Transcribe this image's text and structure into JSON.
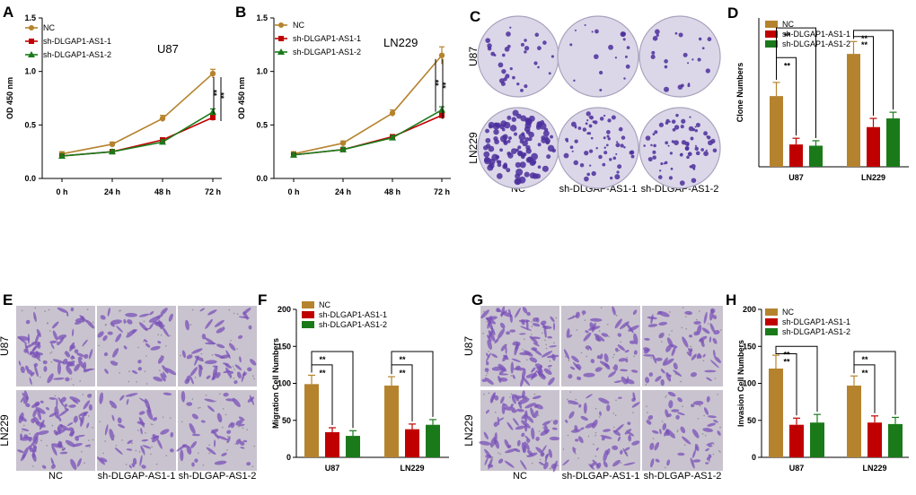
{
  "colors": {
    "NC": "#b5832e",
    "sh1": "#c00000",
    "sh2": "#1a7a1a",
    "plate_bg": "#dcd7e8",
    "colony": "#4b2f9c",
    "well_bg": "#c9c3cf",
    "cell_purple": "#7a52b8"
  },
  "panels": {
    "A": "A",
    "B": "B",
    "C": "C",
    "D": "D",
    "E": "E",
    "F": "F",
    "G": "G",
    "H": "H"
  },
  "images": {
    "C": {
      "rows": [
        "U87",
        "LN229"
      ],
      "cols": [
        "NC",
        "sh-DLGAP-AS1-1",
        "sh-DLGAP-AS1-2"
      ]
    },
    "E": {
      "rows": [
        "U87",
        "LN229"
      ],
      "cols": [
        "NC",
        "sh-DLGAP-AS1-1",
        "sh-DLGAP-AS1-2"
      ]
    },
    "G": {
      "rows": [
        "U87",
        "LN229"
      ],
      "cols": [
        "NC",
        "sh-DLGAP-AS1-1",
        "sh-DLGAP-AS1-2"
      ]
    }
  },
  "chart_data": [
    {
      "id": "A",
      "type": "line",
      "annotation": "U87",
      "ylabel": "OD 450 nm",
      "xlabel": "",
      "categories": [
        "0 h",
        "24 h",
        "48 h",
        "72 h"
      ],
      "ylim": [
        0.0,
        1.5
      ],
      "yticks": [
        "0.0",
        "0.5",
        "1.0",
        "1.5"
      ],
      "legend": "top-left",
      "series": [
        {
          "name": "NC",
          "values": [
            0.23,
            0.32,
            0.56,
            0.98
          ],
          "err": [
            0.02,
            0.02,
            0.03,
            0.04
          ]
        },
        {
          "name": "sh-DLGAP1-AS1-1",
          "values": [
            0.21,
            0.25,
            0.36,
            0.57
          ],
          "err": [
            0.02,
            0.02,
            0.02,
            0.03
          ]
        },
        {
          "name": "sh-DLGAP1-AS1-2",
          "values": [
            0.21,
            0.25,
            0.34,
            0.62
          ],
          "err": [
            0.02,
            0.02,
            0.02,
            0.03
          ]
        }
      ],
      "significance": [
        "**",
        "**"
      ]
    },
    {
      "id": "B",
      "type": "line",
      "annotation": "LN229",
      "ylabel": "OD 450 nm",
      "xlabel": "",
      "categories": [
        "0 h",
        "24 h",
        "48 h",
        "72 h"
      ],
      "ylim": [
        0.0,
        1.5
      ],
      "yticks": [
        "0.0",
        "0.5",
        "1.0",
        "1.5"
      ],
      "legend": "top-left",
      "series": [
        {
          "name": "NC",
          "values": [
            0.23,
            0.33,
            0.61,
            1.15
          ],
          "err": [
            0.02,
            0.02,
            0.03,
            0.08
          ]
        },
        {
          "name": "sh-DLGAP1-AS1-1",
          "values": [
            0.22,
            0.27,
            0.39,
            0.59
          ],
          "err": [
            0.02,
            0.02,
            0.02,
            0.03
          ]
        },
        {
          "name": "sh-DLGAP1-AS1-2",
          "values": [
            0.22,
            0.27,
            0.38,
            0.64
          ],
          "err": [
            0.02,
            0.02,
            0.02,
            0.03
          ]
        }
      ],
      "significance": [
        "**",
        "**"
      ]
    },
    {
      "id": "D",
      "type": "bar",
      "ylabel": "Clone Numbers",
      "xlabel": "",
      "categories": [
        "U87",
        "LN229"
      ],
      "ylim": [
        0,
        120
      ],
      "yticks": [],
      "legend": "top-left",
      "series": [
        {
          "name": "NC",
          "values": [
            57,
            91
          ],
          "err": [
            11,
            10
          ]
        },
        {
          "name": "sh-DLGAP1-AS1-1",
          "values": [
            18,
            32
          ],
          "err": [
            5,
            7
          ]
        },
        {
          "name": "sh-DLGAP1-AS1-2",
          "values": [
            17,
            39
          ],
          "err": [
            4,
            5
          ]
        }
      ],
      "brackets": [
        {
          "group": 0,
          "to": 1,
          "level": 88,
          "label": "**"
        },
        {
          "group": 0,
          "to": 2,
          "level": 112,
          "label": "**"
        },
        {
          "group": 1,
          "to": 1,
          "level": 105,
          "label": "**"
        },
        {
          "group": 1,
          "to": 2,
          "level": 110,
          "label": "**"
        }
      ]
    },
    {
      "id": "F",
      "type": "bar",
      "ylabel": "Migration Cell Numbers",
      "xlabel": "",
      "categories": [
        "U87",
        "LN229"
      ],
      "ylim": [
        0,
        200
      ],
      "yticks": [
        "0",
        "50",
        "100",
        "150",
        "200"
      ],
      "legend": "top-left",
      "series": [
        {
          "name": "NC",
          "values": [
            99,
            97
          ],
          "err": [
            12,
            12
          ]
        },
        {
          "name": "sh-DLGAP1-AS1-1",
          "values": [
            34,
            38
          ],
          "err": [
            6,
            7
          ]
        },
        {
          "name": "sh-DLGAP1-AS1-2",
          "values": [
            29,
            44
          ],
          "err": [
            7,
            7
          ]
        }
      ],
      "brackets": [
        {
          "group": 0,
          "to": 1,
          "level": 125,
          "label": "**"
        },
        {
          "group": 0,
          "to": 2,
          "level": 143,
          "label": "**"
        },
        {
          "group": 1,
          "to": 1,
          "level": 125,
          "label": "**"
        },
        {
          "group": 1,
          "to": 2,
          "level": 143,
          "label": "**"
        }
      ]
    },
    {
      "id": "H",
      "type": "bar",
      "ylabel": "Invasion Cell Numbers",
      "xlabel": "",
      "categories": [
        "U87",
        "LN229"
      ],
      "ylim": [
        0,
        200
      ],
      "yticks": [
        "0",
        "50",
        "100",
        "150",
        "200"
      ],
      "legend": "top-left",
      "series": [
        {
          "name": "NC",
          "values": [
            120,
            97
          ],
          "err": [
            18,
            13
          ]
        },
        {
          "name": "sh-DLGAP1-AS1-1",
          "values": [
            44,
            47
          ],
          "err": [
            9,
            9
          ]
        },
        {
          "name": "sh-DLGAP1-AS1-2",
          "values": [
            47,
            45
          ],
          "err": [
            11,
            9
          ]
        }
      ],
      "brackets": [
        {
          "group": 0,
          "to": 1,
          "level": 140,
          "label": "**"
        },
        {
          "group": 0,
          "to": 2,
          "level": 150,
          "label": "**"
        },
        {
          "group": 1,
          "to": 1,
          "level": 125,
          "label": "**"
        },
        {
          "group": 1,
          "to": 2,
          "level": 143,
          "label": "**"
        }
      ]
    }
  ]
}
